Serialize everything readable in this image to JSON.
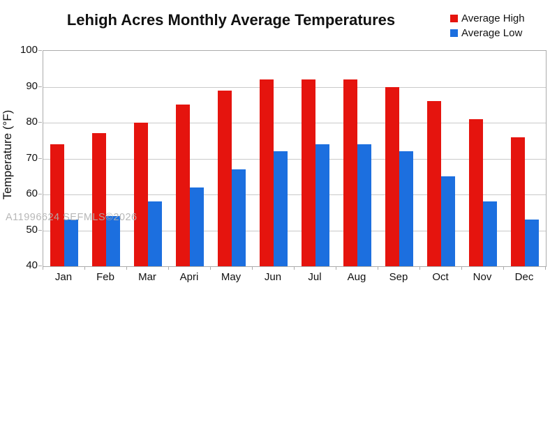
{
  "title": "Lehigh Acres Monthly Average Temperatures",
  "watermark": "A11996624 SEFMLS©2026",
  "legend": {
    "high_label": "Average High",
    "low_label": "Average Low"
  },
  "colors": {
    "avg_high": "#e5140e",
    "avg_low": "#1c6fdf",
    "grid": "#c9c9c9",
    "axis": "#ababab",
    "text": "#111111",
    "watermark": "#b0b0b0"
  },
  "chart_data": {
    "type": "bar",
    "title": "Lehigh Acres Monthly Average Temperatures",
    "xlabel": "",
    "ylabel": "Temperature (°F)",
    "categories": [
      "Jan",
      "Feb",
      "Mar",
      "Apri",
      "May",
      "Jun",
      "Jul",
      "Aug",
      "Sep",
      "Oct",
      "Nov",
      "Dec"
    ],
    "series": [
      {
        "name": "Average High",
        "color": "#e5140e",
        "values": [
          74,
          77,
          80,
          85,
          89,
          92,
          92,
          92,
          90,
          86,
          81,
          76
        ]
      },
      {
        "name": "Average Low",
        "color": "#1c6fdf",
        "values": [
          53,
          54,
          58,
          62,
          67,
          72,
          74,
          74,
          72,
          65,
          58,
          53
        ]
      }
    ],
    "ylim": [
      40,
      100
    ],
    "ytick_step": 10,
    "yticks": [
      40,
      50,
      60,
      70,
      80,
      90,
      100
    ],
    "grid": true,
    "legend_position": "top-right"
  }
}
